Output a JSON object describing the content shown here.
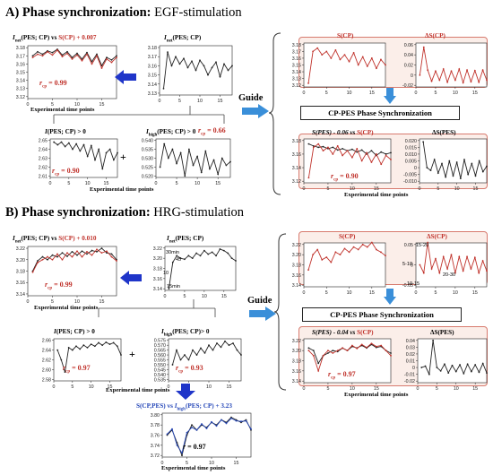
{
  "sectionA": {
    "title_bold": "A) Phase synchronization:",
    "title_rest": " EGF-stimulation",
    "left_top_left": {
      "title_pre": "I",
      "title_sub": "net",
      "title_post": "(PES; CP) vs ",
      "title_red": "S(CP) + 0.007",
      "r_label": "r",
      "r_sub": "cp",
      "r_value": " = 0.99",
      "xlabel": "Experimental time points",
      "yticks": [
        "3.18",
        "3.17",
        "3.16",
        "3.15",
        "3.14",
        "3.13",
        "3.12"
      ],
      "xticks": [
        "0",
        "5",
        "10",
        "15"
      ]
    },
    "left_top_right": {
      "title_pre": "I",
      "title_sub": "net",
      "title_post": "(PES; CP)",
      "yticks": [
        "3.18",
        "3.17",
        "3.16",
        "3.15",
        "3.14",
        "3.13"
      ],
      "xticks": [
        "0",
        "5",
        "10",
        "15"
      ]
    },
    "left_bot_left": {
      "title_pre": "I",
      "title_post": "(PES; CP) > 0",
      "r_label": "r",
      "r_sub": "cp",
      "r_value": " = 0.90",
      "yticks": [
        "2.65",
        "2.64",
        "2.63",
        "2.62",
        "2.61"
      ],
      "xticks": [
        "0",
        "5",
        "10",
        "15"
      ]
    },
    "left_bot_right": {
      "title_pre": "I",
      "title_sub": "high",
      "title_post": "(PES; CP) > 0",
      "r_label": "r",
      "r_sub": "cp",
      "r_value": " = 0.66",
      "yticks": [
        "0.540",
        "0.535",
        "0.530",
        "0.525",
        "0.520"
      ],
      "xticks": [
        "0",
        "5",
        "10",
        "15"
      ]
    },
    "left_bot_xlabel": "Experimental time points",
    "plus": "+",
    "guide": "Guide",
    "right_top_left": {
      "title": "S(CP)",
      "yticks": [
        "3.18",
        "3.17",
        "3.16",
        "3.15",
        "3.14",
        "3.13",
        "3.12"
      ],
      "xticks": [
        "0",
        "5",
        "10",
        "15"
      ]
    },
    "right_top_right": {
      "title": "ΔS(CP)",
      "yticks": [
        "0.06",
        "0.04",
        "0.02",
        "0",
        "-0.02"
      ],
      "xticks": [
        "0",
        "5",
        "10",
        "15"
      ]
    },
    "cp_box": "CP-PES Phase Synchronization",
    "right_bot_left": {
      "title_pre": "S(PES) - 0.06 vs ",
      "title_red": "S(CP)",
      "r_label": "r",
      "r_sub": "cp",
      "r_value": " = 0.90",
      "yticks": [
        "3.18",
        "3.16",
        "3.14",
        "3.12"
      ],
      "xticks": [
        "0",
        "5",
        "10",
        "15"
      ]
    },
    "right_bot_right": {
      "title": "ΔS(PES)",
      "yticks": [
        "0.020",
        "0.015",
        "0.010",
        "0.005",
        "0",
        "-0.005",
        "-0.010"
      ],
      "xticks": [
        "0",
        "5",
        "10",
        "15"
      ]
    },
    "right_xlabel": "Experimental time points"
  },
  "sectionB": {
    "title_bold": "B) Phase synchronization:",
    "title_rest": " HRG-stimulation",
    "left_top_left": {
      "title_pre": "I",
      "title_sub": "net",
      "title_post": "(PES; CP) vs ",
      "title_red": "S(CP) + 0.010",
      "r_label": "r",
      "r_sub": "cp",
      "r_value": " = 0.99",
      "xlabel": "Experimental time points",
      "yticks": [
        "3.22",
        "3.20",
        "3.18",
        "3.16",
        "3.14"
      ],
      "xticks": [
        "0",
        "5",
        "10",
        "15"
      ]
    },
    "left_top_right": {
      "title_pre": "I",
      "title_sub": "net",
      "title_post": "(PES; CP)",
      "yticks": [
        "3.22",
        "3.20",
        "3.18",
        "3.16",
        "3.14"
      ],
      "xticks": [
        "0",
        "5",
        "10",
        "15"
      ],
      "ann_30": "30min",
      "ann_45": "45",
      "ann_10": "10",
      "ann_15": "15min"
    },
    "left_bot_left": {
      "title_pre": "I",
      "title_post": "(PES; CP) > 0",
      "r_label": "r",
      "r_sub": "cp",
      "r_value": " = 0.97",
      "yticks": [
        "2.66",
        "2.64",
        "2.62",
        "2.60",
        "2.58"
      ],
      "xticks": [
        "0",
        "5",
        "10",
        "15"
      ]
    },
    "left_bot_right": {
      "title_pre": "I",
      "title_sub": "high",
      "title_post": "(PES; CP)> 0",
      "r_label": "r",
      "r_sub": "cp",
      "r_value": " = 0.93",
      "yticks": [
        "0.575",
        "0.570",
        "0.565",
        "0.560",
        "0.555",
        "0.550",
        "0.545",
        "0.540",
        "0.535"
      ],
      "xticks": [
        "0",
        "5",
        "10",
        "15"
      ]
    },
    "left_bot_xlabel": "Experimental time points",
    "plus": "+",
    "bottom": {
      "title_blue": "S(CP,PES)",
      "title_mid": " vs ",
      "title_pre": "I",
      "title_sub": "high",
      "title_post": "(PES; CP) + 3.23",
      "r_label": "r",
      "r_value": " = 0.97",
      "xlabel": "Experimental time points",
      "yticks": [
        "3.80",
        "3.78",
        "3.76",
        "3.74",
        "3.72"
      ],
      "xticks": [
        "0",
        "5",
        "10",
        "15"
      ]
    },
    "guide": "Guide",
    "right_top_left": {
      "title": "S(CP)",
      "yticks": [
        "3.22",
        "3.20",
        "3.18",
        "3.16",
        "3.14"
      ],
      "xticks": [
        "0",
        "5",
        "10",
        "15"
      ]
    },
    "right_top_right": {
      "title": "ΔS(CP)",
      "yticks": [
        "0.05",
        "0",
        "-0.05"
      ],
      "xticks": [
        "0",
        "5",
        "10",
        "15"
      ],
      "ann_1520": "15-20",
      "ann_510": "5-10",
      "ann_2030": "20-30",
      "ann_1015": "10-15"
    },
    "cp_box": "CP-PES Phase Synchronization",
    "right_bot_left": {
      "title_pre": "S(PES) - 0.04 vs ",
      "title_red": "S(CP)",
      "r_label": "r",
      "r_sub": "cp",
      "r_value": " = 0.97",
      "yticks": [
        "3.22",
        "3.20",
        "3.18",
        "3.16",
        "3.14"
      ],
      "xticks": [
        "0",
        "5",
        "10",
        "15"
      ]
    },
    "right_bot_right": {
      "title": "ΔS(PES)",
      "yticks": [
        "0.04",
        "0.03",
        "0.02",
        "0.01",
        "0",
        "-0.01",
        "-0.02"
      ],
      "xticks": [
        "0",
        "5",
        "10",
        "15"
      ]
    },
    "right_xlabel": "Experimental time points"
  },
  "colors": {
    "red": "#c0322b",
    "blue": "#2547b8",
    "arrow": "#3a8fd9",
    "arrow_dark": "#1f35c9",
    "panel_fill": "#fbeee9",
    "panel_border": "#d77a6e"
  },
  "series": {
    "a_tl_black": [
      3.17,
      3.175,
      3.172,
      3.176,
      3.174,
      3.178,
      3.171,
      3.175,
      3.168,
      3.173,
      3.166,
      3.174,
      3.163,
      3.172,
      3.158,
      3.168,
      3.165,
      3.17
    ],
    "a_tl_red": [
      3.168,
      3.172,
      3.17,
      3.175,
      3.171,
      3.177,
      3.169,
      3.173,
      3.166,
      3.171,
      3.164,
      3.172,
      3.16,
      3.17,
      3.155,
      3.166,
      3.162,
      3.168
    ],
    "a_tr": [
      3.135,
      3.175,
      3.16,
      3.17,
      3.162,
      3.168,
      3.158,
      3.165,
      3.155,
      3.166,
      3.16,
      3.15,
      3.158,
      3.164,
      3.148,
      3.162,
      3.155,
      3.16
    ],
    "a_bl": [
      2.648,
      2.645,
      2.648,
      2.643,
      2.647,
      2.64,
      2.646,
      2.638,
      2.645,
      2.632,
      2.644,
      2.628,
      2.64,
      2.618,
      2.636,
      2.64,
      2.628,
      2.636
    ],
    "a_br": [
      0.525,
      0.538,
      0.53,
      0.535,
      0.527,
      0.533,
      0.52,
      0.535,
      0.526,
      0.531,
      0.522,
      0.534,
      0.524,
      0.529,
      0.521,
      0.53,
      0.526,
      0.528
    ],
    "a_rtl": [
      3.123,
      3.17,
      3.175,
      3.165,
      3.17,
      3.16,
      3.172,
      3.158,
      3.165,
      3.155,
      3.168,
      3.15,
      3.162,
      3.148,
      3.16,
      3.145,
      3.158,
      3.15
    ],
    "a_rtr": [
      0.0,
      0.055,
      0.01,
      -0.012,
      0.008,
      -0.01,
      0.012,
      -0.014,
      0.008,
      -0.01,
      0.012,
      -0.015,
      0.01,
      -0.013,
      0.009,
      -0.014,
      0.01,
      -0.01
    ],
    "a_rbl_black": [
      3.175,
      3.172,
      3.17,
      3.171,
      3.168,
      3.17,
      3.166,
      3.168,
      3.165,
      3.167,
      3.163,
      3.166,
      3.16,
      3.165,
      3.158,
      3.163,
      3.16,
      3.162
    ],
    "a_rbl_red": [
      3.125,
      3.17,
      3.175,
      3.165,
      3.17,
      3.16,
      3.172,
      3.158,
      3.165,
      3.155,
      3.168,
      3.15,
      3.162,
      3.148,
      3.16,
      3.145,
      3.158,
      3.152
    ],
    "a_rbr": [
      0.019,
      0.0,
      -0.002,
      0.006,
      -0.004,
      0.003,
      -0.007,
      0.005,
      -0.006,
      0.004,
      -0.008,
      0.006,
      -0.005,
      0.003,
      -0.006,
      0.005,
      -0.003,
      0.001
    ],
    "b_tl_black": [
      3.18,
      3.198,
      3.205,
      3.2,
      3.208,
      3.205,
      3.212,
      3.206,
      3.214,
      3.208,
      3.215,
      3.21,
      3.216,
      3.214,
      3.22,
      3.212,
      3.21,
      3.2
    ],
    "b_tl_red": [
      3.178,
      3.195,
      3.2,
      3.205,
      3.2,
      3.21,
      3.2,
      3.212,
      3.205,
      3.215,
      3.205,
      3.214,
      3.208,
      3.218,
      3.212,
      3.215,
      3.205,
      3.198
    ],
    "b_tr": [
      3.14,
      3.192,
      3.205,
      3.2,
      3.198,
      3.205,
      3.2,
      3.21,
      3.205,
      3.215,
      3.208,
      3.212,
      3.205,
      3.218,
      3.215,
      3.21,
      3.2,
      3.195
    ],
    "b_bl": [
      2.64,
      2.62,
      2.595,
      2.645,
      2.64,
      2.648,
      2.642,
      2.65,
      2.645,
      2.652,
      2.648,
      2.655,
      2.65,
      2.656,
      2.652,
      2.655,
      2.648,
      2.63
    ],
    "b_br": [
      0.55,
      0.565,
      0.555,
      0.56,
      0.555,
      0.565,
      0.56,
      0.567,
      0.562,
      0.57,
      0.565,
      0.572,
      0.568,
      0.574,
      0.57,
      0.572,
      0.565,
      0.56
    ],
    "b_rtl": [
      3.17,
      3.2,
      3.21,
      3.19,
      3.195,
      3.185,
      3.205,
      3.2,
      3.212,
      3.205,
      3.215,
      3.21,
      3.22,
      3.215,
      3.224,
      3.21,
      3.205,
      3.198
    ],
    "b_rtr": [
      0.0,
      -0.02,
      0.055,
      -0.01,
      0.015,
      -0.02,
      0.02,
      -0.01,
      0.025,
      -0.02,
      0.02,
      -0.015,
      0.02,
      -0.01,
      0.018,
      -0.02,
      0.01,
      -0.015
    ],
    "b_rbl_black": [
      3.205,
      3.2,
      3.175,
      3.19,
      3.195,
      3.2,
      3.198,
      3.205,
      3.2,
      3.208,
      3.205,
      3.21,
      3.205,
      3.212,
      3.206,
      3.208,
      3.2,
      3.195
    ],
    "b_rbl_red": [
      3.2,
      3.19,
      3.16,
      3.19,
      3.2,
      3.195,
      3.2,
      3.205,
      3.2,
      3.21,
      3.204,
      3.212,
      3.206,
      3.214,
      3.208,
      3.21,
      3.2,
      3.19
    ],
    "b_rbr": [
      0.0,
      0.002,
      -0.01,
      0.04,
      0.0,
      -0.005,
      0.005,
      -0.008,
      0.003,
      -0.006,
      0.004,
      -0.009,
      0.005,
      -0.006,
      0.004,
      -0.007,
      0.006,
      -0.008
    ],
    "b_bot_black": [
      3.76,
      3.77,
      3.745,
      3.72,
      3.76,
      3.78,
      3.77,
      3.78,
      3.775,
      3.785,
      3.78,
      3.79,
      3.785,
      3.795,
      3.79,
      3.785,
      3.79,
      3.77
    ],
    "b_bot_blue": [
      3.762,
      3.772,
      3.74,
      3.725,
      3.765,
      3.775,
      3.77,
      3.782,
      3.773,
      3.786,
      3.778,
      3.79,
      3.783,
      3.793,
      3.788,
      3.787,
      3.788,
      3.772
    ]
  }
}
